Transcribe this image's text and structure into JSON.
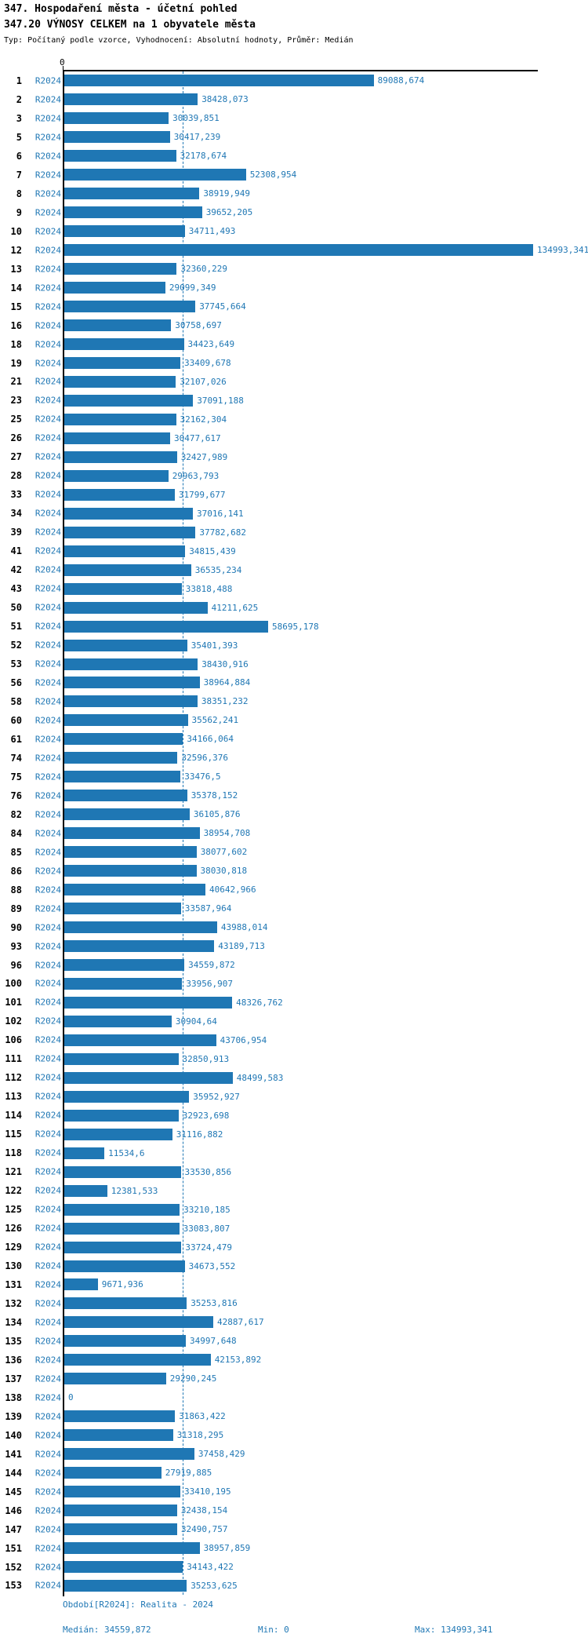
{
  "header": {
    "title_line1": "347. Hospodaření města - účetní pohled",
    "title_line2": "347.20 VÝNOSY CELKEM na 1 obyvatele města",
    "subtitle": "Typ: Počítaný podle vzorce, Vyhodnocení: Absolutní hodnoty, Průměr: Medián"
  },
  "axis": {
    "zero_label": "0"
  },
  "footer": {
    "period_line": "Období[R2024]: Realita - 2024",
    "median_label": "Medián: 34559,872",
    "min_label": "Min: 0",
    "max_label": "Max: 134993,341"
  },
  "colors": {
    "bar": "#1f77b4",
    "blue_text": "#1f77b4",
    "axis": "#000000"
  },
  "chart_data": {
    "type": "bar",
    "orientation": "horizontal",
    "title": "347.20 VÝNOSY CELKEM na 1 obyvatele města",
    "series_label": "R2024",
    "xlabel": "",
    "ylabel": "",
    "xlim": [
      0,
      136000
    ],
    "axis_max": 134993.341,
    "median": 34559.872,
    "min": 0,
    "max": 134993.341,
    "median_line": "dashed",
    "grid": false,
    "legend_position": "none",
    "rows": [
      {
        "rank": "1",
        "value": 89088.674,
        "label": "89088,674"
      },
      {
        "rank": "2",
        "value": 38428.073,
        "label": "38428,073"
      },
      {
        "rank": "3",
        "value": 30039.851,
        "label": "30039,851"
      },
      {
        "rank": "5",
        "value": 30417.239,
        "label": "30417,239"
      },
      {
        "rank": "6",
        "value": 32178.674,
        "label": "32178,674"
      },
      {
        "rank": "7",
        "value": 52308.954,
        "label": "52308,954"
      },
      {
        "rank": "8",
        "value": 38919.949,
        "label": "38919,949"
      },
      {
        "rank": "9",
        "value": 39652.205,
        "label": "39652,205"
      },
      {
        "rank": "10",
        "value": 34711.493,
        "label": "34711,493"
      },
      {
        "rank": "12",
        "value": 134993.341,
        "label": "134993,341"
      },
      {
        "rank": "13",
        "value": 32360.229,
        "label": "32360,229"
      },
      {
        "rank": "14",
        "value": 29099.349,
        "label": "29099,349"
      },
      {
        "rank": "15",
        "value": 37745.664,
        "label": "37745,664"
      },
      {
        "rank": "16",
        "value": 30758.697,
        "label": "30758,697"
      },
      {
        "rank": "18",
        "value": 34423.649,
        "label": "34423,649"
      },
      {
        "rank": "19",
        "value": 33409.678,
        "label": "33409,678"
      },
      {
        "rank": "21",
        "value": 32107.026,
        "label": "32107,026"
      },
      {
        "rank": "23",
        "value": 37091.188,
        "label": "37091,188"
      },
      {
        "rank": "25",
        "value": 32162.304,
        "label": "32162,304"
      },
      {
        "rank": "26",
        "value": 30477.617,
        "label": "30477,617"
      },
      {
        "rank": "27",
        "value": 32427.989,
        "label": "32427,989"
      },
      {
        "rank": "28",
        "value": 29963.793,
        "label": "29963,793"
      },
      {
        "rank": "33",
        "value": 31799.677,
        "label": "31799,677"
      },
      {
        "rank": "34",
        "value": 37016.141,
        "label": "37016,141"
      },
      {
        "rank": "39",
        "value": 37782.682,
        "label": "37782,682"
      },
      {
        "rank": "41",
        "value": 34815.439,
        "label": "34815,439"
      },
      {
        "rank": "42",
        "value": 36535.234,
        "label": "36535,234"
      },
      {
        "rank": "43",
        "value": 33818.488,
        "label": "33818,488"
      },
      {
        "rank": "50",
        "value": 41211.625,
        "label": "41211,625"
      },
      {
        "rank": "51",
        "value": 58695.178,
        "label": "58695,178"
      },
      {
        "rank": "52",
        "value": 35401.393,
        "label": "35401,393"
      },
      {
        "rank": "53",
        "value": 38430.916,
        "label": "38430,916"
      },
      {
        "rank": "56",
        "value": 38964.884,
        "label": "38964,884"
      },
      {
        "rank": "58",
        "value": 38351.232,
        "label": "38351,232"
      },
      {
        "rank": "60",
        "value": 35562.241,
        "label": "35562,241"
      },
      {
        "rank": "61",
        "value": 34166.064,
        "label": "34166,064"
      },
      {
        "rank": "74",
        "value": 32596.376,
        "label": "32596,376"
      },
      {
        "rank": "75",
        "value": 33476.5,
        "label": "33476,5"
      },
      {
        "rank": "76",
        "value": 35378.152,
        "label": "35378,152"
      },
      {
        "rank": "82",
        "value": 36105.876,
        "label": "36105,876"
      },
      {
        "rank": "84",
        "value": 38954.708,
        "label": "38954,708"
      },
      {
        "rank": "85",
        "value": 38077.602,
        "label": "38077,602"
      },
      {
        "rank": "86",
        "value": 38030.818,
        "label": "38030,818"
      },
      {
        "rank": "88",
        "value": 40642.966,
        "label": "40642,966"
      },
      {
        "rank": "89",
        "value": 33587.964,
        "label": "33587,964"
      },
      {
        "rank": "90",
        "value": 43988.014,
        "label": "43988,014"
      },
      {
        "rank": "93",
        "value": 43189.713,
        "label": "43189,713"
      },
      {
        "rank": "96",
        "value": 34559.872,
        "label": "34559,872"
      },
      {
        "rank": "100",
        "value": 33956.907,
        "label": "33956,907"
      },
      {
        "rank": "101",
        "value": 48326.762,
        "label": "48326,762"
      },
      {
        "rank": "102",
        "value": 30904.64,
        "label": "30904,64"
      },
      {
        "rank": "106",
        "value": 43706.954,
        "label": "43706,954"
      },
      {
        "rank": "111",
        "value": 32850.913,
        "label": "32850,913"
      },
      {
        "rank": "112",
        "value": 48499.583,
        "label": "48499,583"
      },
      {
        "rank": "113",
        "value": 35952.927,
        "label": "35952,927"
      },
      {
        "rank": "114",
        "value": 32923.698,
        "label": "32923,698"
      },
      {
        "rank": "115",
        "value": 31116.882,
        "label": "31116,882"
      },
      {
        "rank": "118",
        "value": 11534.6,
        "label": "11534,6"
      },
      {
        "rank": "121",
        "value": 33530.856,
        "label": "33530,856"
      },
      {
        "rank": "122",
        "value": 12381.533,
        "label": "12381,533"
      },
      {
        "rank": "125",
        "value": 33210.185,
        "label": "33210,185"
      },
      {
        "rank": "126",
        "value": 33083.807,
        "label": "33083,807"
      },
      {
        "rank": "129",
        "value": 33724.479,
        "label": "33724,479"
      },
      {
        "rank": "130",
        "value": 34673.552,
        "label": "34673,552"
      },
      {
        "rank": "131",
        "value": 9671.936,
        "label": "9671,936"
      },
      {
        "rank": "132",
        "value": 35253.816,
        "label": "35253,816"
      },
      {
        "rank": "134",
        "value": 42887.617,
        "label": "42887,617"
      },
      {
        "rank": "135",
        "value": 34997.648,
        "label": "34997,648"
      },
      {
        "rank": "136",
        "value": 42153.892,
        "label": "42153,892"
      },
      {
        "rank": "137",
        "value": 29290.245,
        "label": "29290,245"
      },
      {
        "rank": "138",
        "value": 0,
        "label": "0"
      },
      {
        "rank": "139",
        "value": 31863.422,
        "label": "31863,422"
      },
      {
        "rank": "140",
        "value": 31318.295,
        "label": "31318,295"
      },
      {
        "rank": "141",
        "value": 37458.429,
        "label": "37458,429"
      },
      {
        "rank": "144",
        "value": 27919.885,
        "label": "27919,885"
      },
      {
        "rank": "145",
        "value": 33410.195,
        "label": "33410,195"
      },
      {
        "rank": "146",
        "value": 32438.154,
        "label": "32438,154"
      },
      {
        "rank": "147",
        "value": 32490.757,
        "label": "32490,757"
      },
      {
        "rank": "151",
        "value": 38957.859,
        "label": "38957,859"
      },
      {
        "rank": "152",
        "value": 34143.422,
        "label": "34143,422"
      },
      {
        "rank": "153",
        "value": 35253.625,
        "label": "35253,625"
      }
    ]
  }
}
